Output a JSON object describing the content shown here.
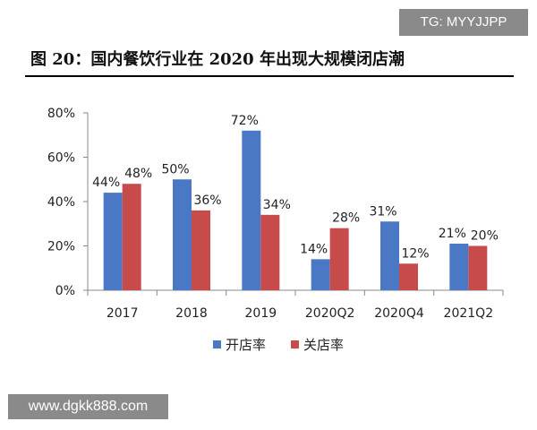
{
  "watermark_top": "TG: MYYJJPP",
  "watermark_bottom": "www.dgkk888.com",
  "figure_title": "图 20：国内餐饮行业在 2020 年出现大规模闭店潮",
  "colors": {
    "open": "#4a78c4",
    "close": "#c84b4b",
    "axis": "#888888",
    "grid": "#bfbfbf"
  },
  "chart_data": {
    "type": "bar",
    "title": "",
    "xlabel": "",
    "ylabel": "",
    "ylim": [
      0,
      80
    ],
    "y_ticks": [
      "0%",
      "20%",
      "40%",
      "60%",
      "80%"
    ],
    "y_tick_values": [
      0,
      20,
      40,
      60,
      80
    ],
    "grid": false,
    "legend_position": "bottom",
    "categories": [
      "2017",
      "2018",
      "2019",
      "2020Q2",
      "2020Q4",
      "2021Q2"
    ],
    "series": [
      {
        "name": "开店率",
        "values": [
          44,
          50,
          72,
          14,
          31,
          21
        ],
        "labels": [
          "44%",
          "50%",
          "72%",
          "14%",
          "31%",
          "21%"
        ]
      },
      {
        "name": "关店率",
        "values": [
          48,
          36,
          34,
          28,
          12,
          20
        ],
        "labels": [
          "48%",
          "36%",
          "34%",
          "28%",
          "12%",
          "20%"
        ]
      }
    ]
  }
}
